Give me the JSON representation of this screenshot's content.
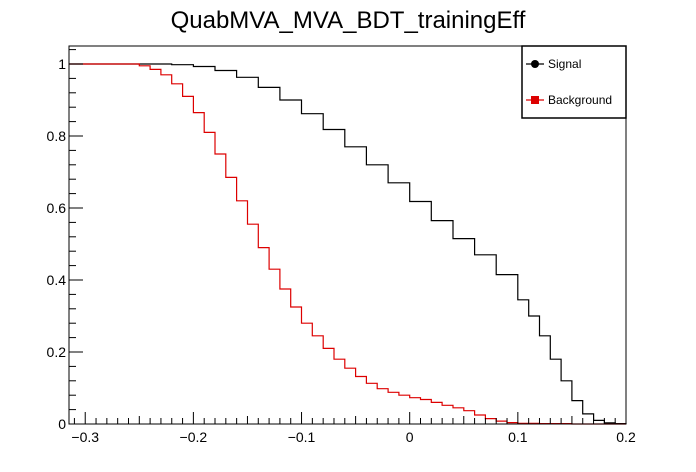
{
  "chart_data": {
    "type": "line",
    "title": "QuabMVA_MVA_BDT_trainingEff",
    "xlabel": "",
    "ylabel": "",
    "xlim": [
      -0.315,
      0.2
    ],
    "ylim": [
      0,
      1.05
    ],
    "x_ticks": [
      -0.3,
      -0.2,
      -0.1,
      0,
      0.1,
      0.2
    ],
    "x_tick_labels": [
      "−0.3",
      "−0.2",
      "−0.1",
      "0",
      "0.1",
      "0.2"
    ],
    "y_ticks": [
      0,
      0.2,
      0.4,
      0.6,
      0.8,
      1
    ],
    "y_tick_labels": [
      "0",
      "0.2",
      "0.4",
      "0.6",
      "0.8",
      "1"
    ],
    "grid": false,
    "legend_position": "top-right",
    "series": [
      {
        "name": "Signal",
        "color": "#000000",
        "marker": "circle",
        "x": [
          -0.315,
          -0.28,
          -0.26,
          -0.24,
          -0.22,
          -0.2,
          -0.18,
          -0.16,
          -0.14,
          -0.12,
          -0.1,
          -0.08,
          -0.06,
          -0.04,
          -0.02,
          0.0,
          0.02,
          0.04,
          0.06,
          0.08,
          0.1,
          0.11,
          0.12,
          0.13,
          0.14,
          0.15,
          0.16,
          0.17,
          0.18,
          0.19,
          0.2
        ],
        "y": [
          1.0,
          1.0,
          1.0,
          1.0,
          0.998,
          0.993,
          0.982,
          0.963,
          0.935,
          0.9,
          0.862,
          0.818,
          0.77,
          0.72,
          0.67,
          0.618,
          0.565,
          0.515,
          0.47,
          0.415,
          0.345,
          0.3,
          0.245,
          0.18,
          0.12,
          0.065,
          0.028,
          0.01,
          0.003,
          0.001,
          0.0
        ]
      },
      {
        "name": "Background",
        "color": "#dd0000",
        "marker": "square",
        "x": [
          -0.315,
          -0.28,
          -0.265,
          -0.25,
          -0.24,
          -0.23,
          -0.22,
          -0.21,
          -0.2,
          -0.19,
          -0.18,
          -0.17,
          -0.16,
          -0.15,
          -0.14,
          -0.13,
          -0.12,
          -0.11,
          -0.1,
          -0.09,
          -0.08,
          -0.07,
          -0.06,
          -0.05,
          -0.04,
          -0.03,
          -0.02,
          -0.01,
          0.0,
          0.01,
          0.02,
          0.03,
          0.04,
          0.05,
          0.06,
          0.07,
          0.08,
          0.09,
          0.1,
          0.12,
          0.15,
          0.2
        ],
        "y": [
          1.0,
          1.0,
          1.0,
          0.995,
          0.985,
          0.97,
          0.945,
          0.91,
          0.865,
          0.81,
          0.75,
          0.685,
          0.62,
          0.555,
          0.49,
          0.43,
          0.375,
          0.325,
          0.28,
          0.245,
          0.21,
          0.18,
          0.155,
          0.132,
          0.113,
          0.098,
          0.088,
          0.08,
          0.073,
          0.068,
          0.06,
          0.052,
          0.045,
          0.037,
          0.025,
          0.015,
          0.008,
          0.004,
          0.002,
          0.001,
          0.0,
          0.0
        ]
      }
    ]
  }
}
